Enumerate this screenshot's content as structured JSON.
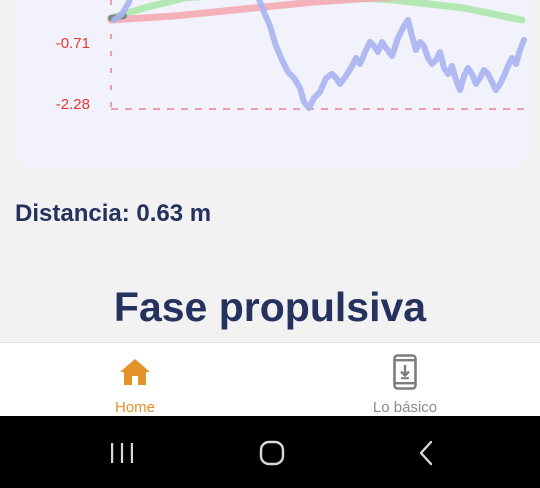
{
  "chart_data": {
    "type": "line",
    "yticks": [
      "-0.71",
      "-2.28"
    ],
    "colors": {
      "tick_label": "#e53935",
      "reference_line": "#f06d7a",
      "series_blue": "#aab2f2",
      "series_green": "#a8e6a8",
      "series_red": "#f5a6ae"
    }
  },
  "distance": {
    "text": "Distancia: 0.63 m"
  },
  "phase": {
    "title": "Fase propulsiva"
  },
  "bottom_nav": {
    "items": [
      {
        "label": "Home",
        "icon": "home-icon",
        "active": true,
        "color": "#e3922a"
      },
      {
        "label": "Lo básico",
        "icon": "phone-download-icon",
        "active": false,
        "color": "#8a8a8a"
      }
    ]
  },
  "system_nav": {
    "buttons": [
      "recent-apps-icon",
      "home-circle-icon",
      "back-icon"
    ]
  }
}
